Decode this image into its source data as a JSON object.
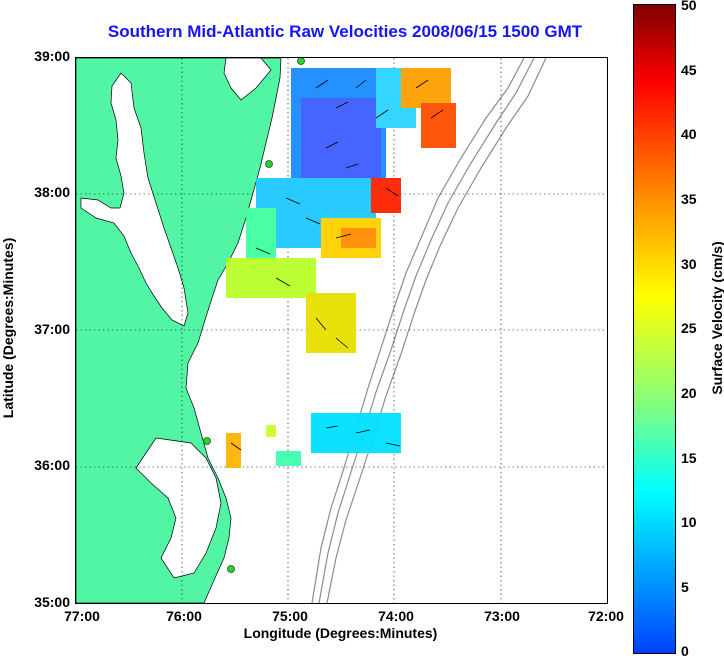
{
  "title": "Southern Mid-Atlantic Raw Velocities 2008/06/15 1500 GMT",
  "axes": {
    "xlabel": "Longitude (Degrees:Minutes)",
    "ylabel": "Latitude (Degrees:Minutes)",
    "xticks": [
      "77:00",
      "76:00",
      "75:00",
      "74:00",
      "73:00",
      "72:00"
    ],
    "yticks": [
      "39:00",
      "38:00",
      "37:00",
      "36:00",
      "35:00"
    ]
  },
  "colorbar": {
    "label": "Surface Velocity (cm/s)",
    "ticks": [
      "50",
      "45",
      "40",
      "35",
      "30",
      "25",
      "20",
      "15",
      "10",
      "5",
      "0"
    ]
  },
  "colors": {
    "land": "#52f5a4",
    "water": "#ffffff",
    "bathymetry": "#8c8c8c",
    "title": "#1414ff",
    "station": "#33cc33"
  },
  "map_extent": {
    "lon_range": [
      -77,
      -72
    ],
    "lat_range": [
      35,
      39
    ]
  }
}
